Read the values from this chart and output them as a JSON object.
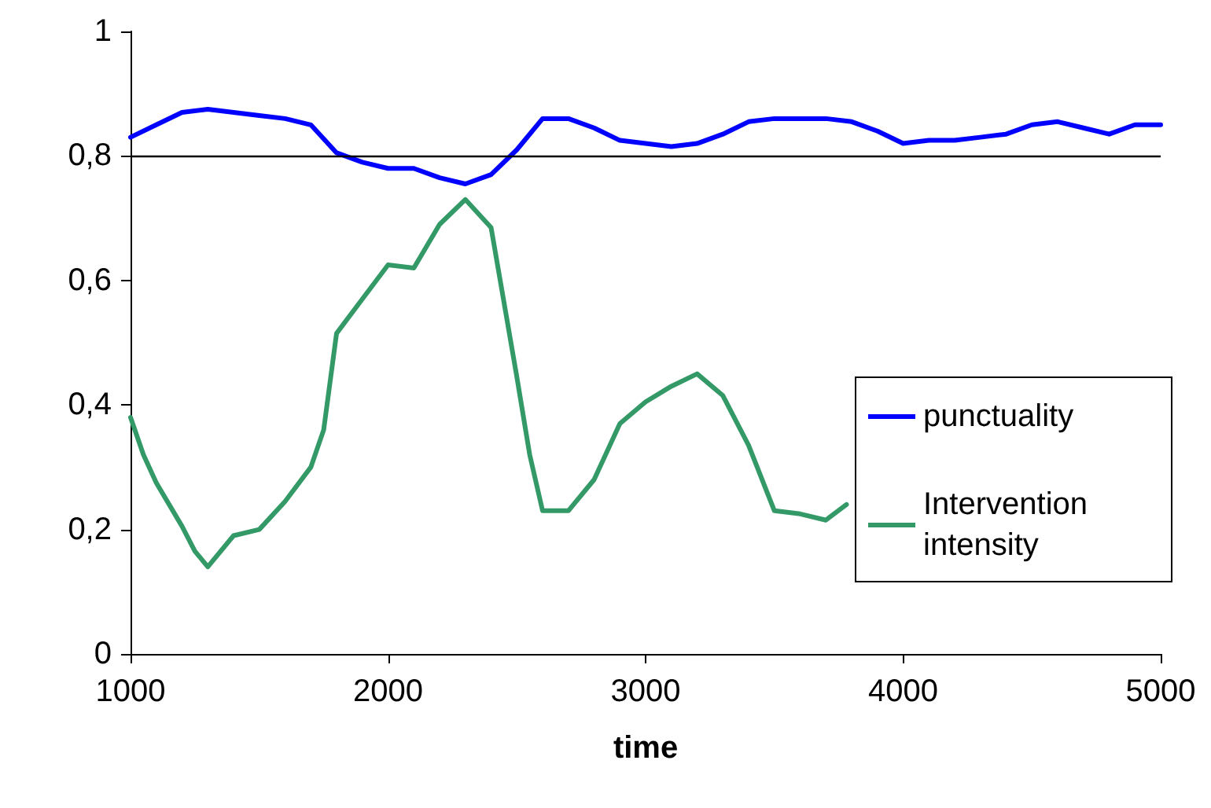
{
  "chart_data": {
    "type": "line",
    "xlabel": "time",
    "xlim": [
      1000,
      5000
    ],
    "xticks": [
      1000,
      2000,
      3000,
      4000,
      5000
    ],
    "ylim": [
      0,
      1
    ],
    "yticks": [
      0,
      {
        "value": 0.2,
        "label": "0,2"
      },
      {
        "value": 0.4,
        "label": "0,4"
      },
      {
        "value": 0.6,
        "label": "0,6"
      },
      {
        "value": 0.8,
        "label": "0,8"
      },
      1
    ],
    "grid": false,
    "legend": "right",
    "marker": "none",
    "line_style": "solid",
    "ref_lines": [
      {
        "axis": "y",
        "value": 0.8,
        "color": "#000000"
      }
    ],
    "series": [
      {
        "name": "punctuality",
        "color": "#0000ff",
        "x": [
          1000,
          1100,
          1200,
          1300,
          1400,
          1500,
          1600,
          1700,
          1800,
          1900,
          2000,
          2100,
          2200,
          2300,
          2400,
          2500,
          2600,
          2700,
          2800,
          2900,
          3000,
          3100,
          3200,
          3300,
          3400,
          3500,
          3600,
          3700,
          3800,
          3900,
          4000,
          4100,
          4200,
          4300,
          4400,
          4500,
          4600,
          4700,
          4800,
          4900,
          5000
        ],
        "values": [
          0.83,
          0.85,
          0.87,
          0.875,
          0.87,
          0.865,
          0.86,
          0.85,
          0.805,
          0.79,
          0.78,
          0.78,
          0.765,
          0.755,
          0.77,
          0.81,
          0.86,
          0.86,
          0.845,
          0.825,
          0.82,
          0.815,
          0.82,
          0.835,
          0.855,
          0.86,
          0.86,
          0.86,
          0.855,
          0.84,
          0.82,
          0.825,
          0.825,
          0.83,
          0.835,
          0.85,
          0.855,
          0.845,
          0.835,
          0.85,
          0.85
        ]
      },
      {
        "name": "Intervention intensity",
        "color": "#339966",
        "x": [
          1000,
          1050,
          1100,
          1200,
          1250,
          1300,
          1400,
          1500,
          1600,
          1700,
          1750,
          1800,
          1900,
          2000,
          2100,
          2200,
          2300,
          2400,
          2500,
          2550,
          2600,
          2700,
          2800,
          2900,
          3000,
          3100,
          3200,
          3300,
          3400,
          3500,
          3600,
          3700,
          3780
        ],
        "values": [
          0.38,
          0.32,
          0.275,
          0.205,
          0.165,
          0.14,
          0.19,
          0.2,
          0.245,
          0.3,
          0.36,
          0.515,
          0.57,
          0.625,
          0.62,
          0.69,
          0.73,
          0.685,
          0.445,
          0.32,
          0.23,
          0.23,
          0.28,
          0.37,
          0.405,
          0.43,
          0.45,
          0.415,
          0.335,
          0.23,
          0.225,
          0.215,
          0.24
        ]
      }
    ]
  }
}
